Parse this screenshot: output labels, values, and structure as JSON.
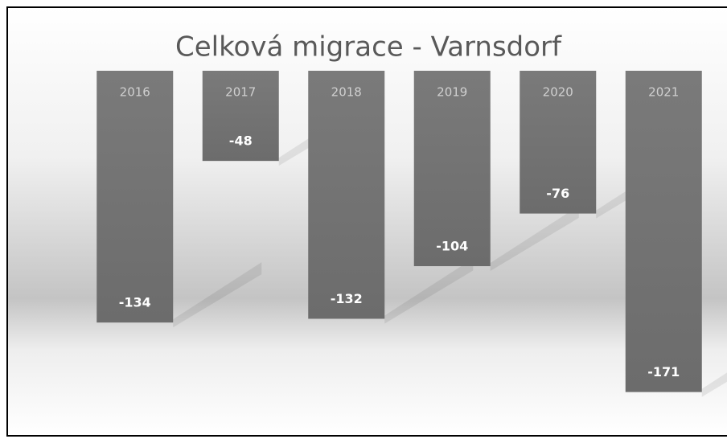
{
  "chart_data": {
    "type": "bar",
    "title": "Celková migrace - Varnsdorf",
    "categories": [
      "2016",
      "2017",
      "2018",
      "2019",
      "2020",
      "2021"
    ],
    "values": [
      -134,
      -48,
      -132,
      -104,
      -76,
      -171
    ],
    "color": "#777777",
    "ylim": [
      -190,
      0
    ]
  }
}
